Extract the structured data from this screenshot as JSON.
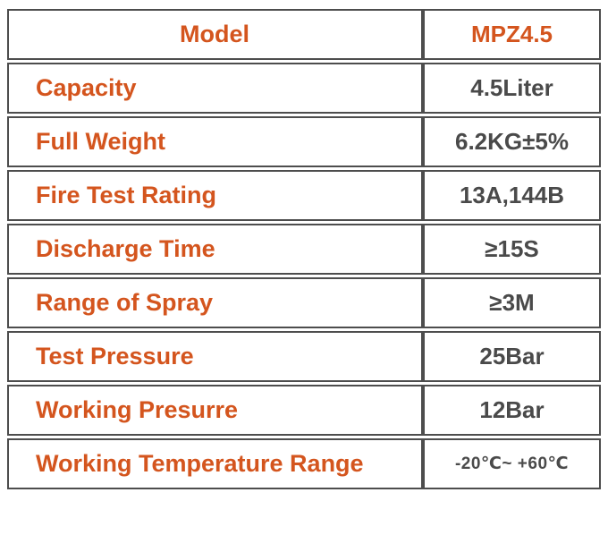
{
  "accent_color": "#d4551e",
  "value_text_color": "#4a4a4a",
  "border_color": "#4d4d4d",
  "table": {
    "columns": [
      "attribute",
      "value"
    ],
    "rows": [
      {
        "label": "Model",
        "value": "MPZ4.5"
      },
      {
        "label": "Capacity",
        "value": "4.5Liter"
      },
      {
        "label": "Full Weight",
        "value": "6.2KG±5%"
      },
      {
        "label": "Fire Test Rating",
        "value": "13A,144B"
      },
      {
        "label": "Discharge Time",
        "value": "≥15S"
      },
      {
        "label": "Range of Spray",
        "value": "≥3M"
      },
      {
        "label": "Test Pressure",
        "value": "25Bar"
      },
      {
        "label": "Working Presurre",
        "value": "12Bar"
      },
      {
        "label": "Working Temperature Range",
        "value": "-20℃~ +60℃"
      }
    ]
  }
}
